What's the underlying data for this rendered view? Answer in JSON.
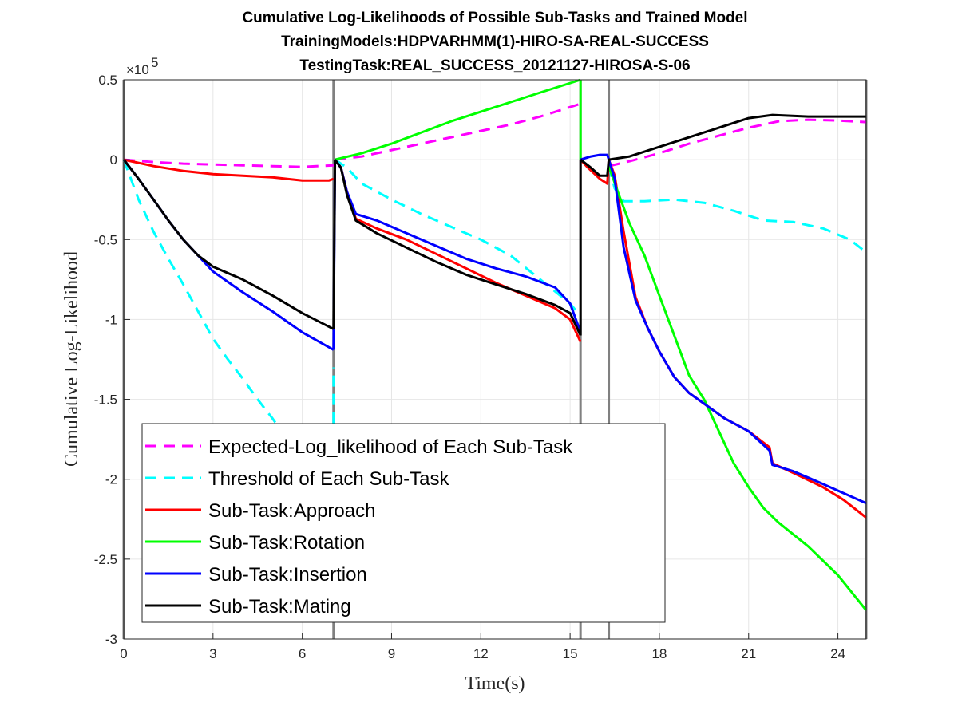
{
  "chart_data": {
    "type": "line",
    "title_lines": [
      "Cumulative Log-Likelihoods of Possible Sub-Tasks and Trained Model",
      "TrainingModels:HDPVARHMM(1)-HIRO-SA-REAL-SUCCESS",
      "TestingTask:REAL_SUCCESS_20121127-HIROSA-S-06"
    ],
    "xlabel": "Time(s)",
    "ylabel": "Cumulative Log-Likelihood",
    "y_exponent_label": "×10",
    "y_exponent_power": "5",
    "xlim": [
      0,
      24.95
    ],
    "ylim": [
      -3,
      0.5
    ],
    "y_units": "x10^5",
    "grid": true,
    "legend_position": "lower-left",
    "x_ticks": [
      0,
      3,
      6,
      9,
      12,
      15,
      18,
      21,
      24
    ],
    "x_tick_labels": [
      "0",
      "3",
      "6",
      "9",
      "12",
      "15",
      "18",
      "21",
      "24"
    ],
    "y_ticks": [
      0.5,
      0,
      -0.5,
      -1,
      -1.5,
      -2,
      -2.5,
      -3
    ],
    "y_tick_labels": [
      "0.5",
      "0",
      "-0.5",
      "-1",
      "-1.5",
      "-2",
      "-2.5",
      "-3"
    ],
    "vertical_markers": [
      0,
      7.05,
      15.35,
      16.3,
      24.95
    ],
    "vertical_marker_color": "#808080",
    "series": [
      {
        "name": "Expected-Log_likelihood of Each Sub-Task",
        "color": "#ff00ff",
        "dashed": true,
        "segments": [
          [
            [
              0,
              0
            ],
            [
              1,
              -0.015
            ],
            [
              2,
              -0.025
            ],
            [
              3,
              -0.03
            ],
            [
              4,
              -0.035
            ],
            [
              5,
              -0.04
            ],
            [
              6,
              -0.045
            ],
            [
              7.05,
              -0.035
            ]
          ],
          [
            [
              7.1,
              0
            ],
            [
              8,
              0.02
            ],
            [
              9,
              0.06
            ],
            [
              10,
              0.1
            ],
            [
              11,
              0.14
            ],
            [
              12,
              0.18
            ],
            [
              13,
              0.22
            ],
            [
              14,
              0.27
            ],
            [
              15.35,
              0.35
            ]
          ],
          [
            [
              16.3,
              -0.04
            ],
            [
              17,
              -0.01
            ],
            [
              18,
              0.04
            ],
            [
              19,
              0.1
            ],
            [
              20,
              0.15
            ],
            [
              21,
              0.2
            ],
            [
              22,
              0.24
            ],
            [
              23,
              0.25
            ],
            [
              24,
              0.245
            ],
            [
              24.95,
              0.235
            ]
          ]
        ]
      },
      {
        "name": "Threshold of Each Sub-Task",
        "color": "#00ffff",
        "dashed": true,
        "segments": [
          [
            [
              0,
              0
            ],
            [
              0.5,
              -0.25
            ],
            [
              1,
              -0.45
            ],
            [
              1.5,
              -0.62
            ],
            [
              2,
              -0.78
            ],
            [
              2.5,
              -0.95
            ],
            [
              3,
              -1.12
            ],
            [
              3.5,
              -1.25
            ],
            [
              4,
              -1.37
            ],
            [
              4.5,
              -1.5
            ],
            [
              5,
              -1.62
            ],
            [
              5.3,
              -1.7
            ]
          ],
          [
            [
              7.05,
              -1.65
            ],
            [
              7.05,
              -1.3
            ]
          ],
          [
            [
              7.1,
              0
            ],
            [
              7.5,
              -0.05
            ],
            [
              8,
              -0.15
            ],
            [
              9,
              -0.25
            ],
            [
              10,
              -0.34
            ],
            [
              11,
              -0.42
            ],
            [
              12,
              -0.5
            ],
            [
              13,
              -0.6
            ],
            [
              14,
              -0.75
            ],
            [
              15,
              -0.9
            ],
            [
              15.35,
              -0.98
            ]
          ],
          [
            [
              16.3,
              -0.04
            ],
            [
              16.5,
              -0.18
            ],
            [
              16.8,
              -0.26
            ],
            [
              17.5,
              -0.26
            ],
            [
              18.5,
              -0.25
            ],
            [
              19.5,
              -0.27
            ],
            [
              20.5,
              -0.32
            ],
            [
              21.5,
              -0.38
            ],
            [
              22.5,
              -0.39
            ],
            [
              23.5,
              -0.43
            ],
            [
              24.4,
              -0.5
            ],
            [
              24.95,
              -0.58
            ]
          ]
        ]
      },
      {
        "name": "Sub-Task:Approach",
        "color": "#ff0000",
        "dashed": false,
        "segments": [
          [
            [
              0,
              0
            ],
            [
              1,
              -0.04
            ],
            [
              2,
              -0.07
            ],
            [
              3,
              -0.09
            ],
            [
              4,
              -0.1
            ],
            [
              5,
              -0.11
            ],
            [
              6,
              -0.13
            ],
            [
              6.9,
              -0.13
            ],
            [
              7.05,
              -0.12
            ]
          ],
          [
            [
              7.1,
              0
            ],
            [
              7.3,
              -0.05
            ],
            [
              7.5,
              -0.2
            ],
            [
              7.8,
              -0.37
            ],
            [
              8.5,
              -0.43
            ],
            [
              9.5,
              -0.5
            ],
            [
              10.5,
              -0.59
            ],
            [
              11.5,
              -0.68
            ],
            [
              12.5,
              -0.77
            ],
            [
              13.5,
              -0.85
            ],
            [
              14.5,
              -0.93
            ],
            [
              15,
              -1.0
            ],
            [
              15.35,
              -1.14
            ]
          ],
          [
            [
              15.35,
              0
            ],
            [
              15.6,
              -0.05
            ],
            [
              16,
              -0.12
            ],
            [
              16.25,
              -0.15
            ],
            [
              16.3,
              0
            ],
            [
              16.5,
              -0.1
            ],
            [
              16.8,
              -0.45
            ],
            [
              17.2,
              -0.86
            ],
            [
              17.6,
              -1.05
            ],
            [
              18,
              -1.2
            ],
            [
              18.5,
              -1.36
            ],
            [
              19,
              -1.46
            ],
            [
              19.6,
              -1.54
            ],
            [
              20.2,
              -1.62
            ],
            [
              21,
              -1.7
            ],
            [
              21.7,
              -1.8
            ],
            [
              21.8,
              -1.9
            ],
            [
              22.5,
              -1.96
            ],
            [
              23.5,
              -2.05
            ],
            [
              24.2,
              -2.13
            ],
            [
              24.95,
              -2.24
            ]
          ]
        ]
      },
      {
        "name": "Sub-Task:Rotation",
        "color": "#00ff00",
        "dashed": false,
        "segments": [
          [
            [
              7.1,
              0
            ],
            [
              8,
              0.04
            ],
            [
              9,
              0.1
            ],
            [
              10,
              0.17
            ],
            [
              11,
              0.24
            ],
            [
              12,
              0.3
            ],
            [
              13,
              0.36
            ],
            [
              14,
              0.42
            ],
            [
              15.35,
              0.5
            ]
          ],
          [
            [
              15.35,
              0.5
            ],
            [
              15.35,
              0
            ]
          ],
          [
            [
              16.3,
              -0.04
            ],
            [
              16.6,
              -0.2
            ],
            [
              17,
              -0.4
            ],
            [
              17.5,
              -0.6
            ],
            [
              18,
              -0.85
            ],
            [
              18.5,
              -1.1
            ],
            [
              19,
              -1.35
            ],
            [
              19.5,
              -1.5
            ],
            [
              20,
              -1.7
            ],
            [
              20.5,
              -1.9
            ],
            [
              21,
              -2.05
            ],
            [
              21.5,
              -2.18
            ],
            [
              22,
              -2.27
            ],
            [
              23,
              -2.42
            ],
            [
              24,
              -2.6
            ],
            [
              24.95,
              -2.82
            ]
          ]
        ]
      },
      {
        "name": "Sub-Task:Insertion",
        "color": "#0000ff",
        "dashed": false,
        "segments": [
          [
            [
              0,
              0
            ],
            [
              0.5,
              -0.12
            ],
            [
              1,
              -0.25
            ],
            [
              1.5,
              -0.38
            ],
            [
              2,
              -0.5
            ],
            [
              2.5,
              -0.6
            ],
            [
              3,
              -0.7
            ],
            [
              4,
              -0.83
            ],
            [
              5,
              -0.95
            ],
            [
              6,
              -1.08
            ],
            [
              7.05,
              -1.19
            ]
          ],
          [
            [
              7.05,
              -1.19
            ],
            [
              7.1,
              0
            ]
          ],
          [
            [
              7.1,
              0
            ],
            [
              7.3,
              -0.05
            ],
            [
              7.5,
              -0.2
            ],
            [
              7.8,
              -0.34
            ],
            [
              8.5,
              -0.38
            ],
            [
              9.5,
              -0.46
            ],
            [
              10.5,
              -0.54
            ],
            [
              11.5,
              -0.62
            ],
            [
              12.5,
              -0.68
            ],
            [
              13.5,
              -0.73
            ],
            [
              14.5,
              -0.8
            ],
            [
              15,
              -0.9
            ],
            [
              15.35,
              -1.08
            ]
          ],
          [
            [
              15.35,
              0
            ],
            [
              15.7,
              0.02
            ],
            [
              16,
              0.03
            ],
            [
              16.25,
              0.03
            ],
            [
              16.3,
              0
            ],
            [
              16.5,
              -0.12
            ],
            [
              16.8,
              -0.55
            ],
            [
              17.2,
              -0.88
            ],
            [
              17.6,
              -1.05
            ],
            [
              18,
              -1.2
            ],
            [
              18.5,
              -1.36
            ],
            [
              19,
              -1.46
            ],
            [
              19.6,
              -1.54
            ],
            [
              20.2,
              -1.62
            ],
            [
              21,
              -1.7
            ],
            [
              21.7,
              -1.82
            ],
            [
              21.8,
              -1.91
            ],
            [
              22.5,
              -1.95
            ],
            [
              23.5,
              -2.03
            ],
            [
              24.95,
              -2.15
            ]
          ]
        ]
      },
      {
        "name": "Sub-Task:Mating",
        "color": "#000000",
        "dashed": false,
        "segments": [
          [
            [
              0,
              0
            ],
            [
              0.5,
              -0.12
            ],
            [
              1,
              -0.25
            ],
            [
              1.5,
              -0.38
            ],
            [
              2,
              -0.5
            ],
            [
              2.5,
              -0.6
            ],
            [
              3,
              -0.67
            ],
            [
              4,
              -0.75
            ],
            [
              5,
              -0.85
            ],
            [
              6,
              -0.96
            ],
            [
              7.05,
              -1.06
            ]
          ],
          [
            [
              7.05,
              -1.06
            ],
            [
              7.1,
              0
            ]
          ],
          [
            [
              7.1,
              0
            ],
            [
              7.3,
              -0.05
            ],
            [
              7.5,
              -0.22
            ],
            [
              7.8,
              -0.38
            ],
            [
              8.5,
              -0.46
            ],
            [
              9.5,
              -0.55
            ],
            [
              10.5,
              -0.64
            ],
            [
              11.5,
              -0.72
            ],
            [
              12.5,
              -0.78
            ],
            [
              13.5,
              -0.84
            ],
            [
              14.5,
              -0.91
            ],
            [
              15,
              -0.96
            ],
            [
              15.35,
              -1.1
            ]
          ],
          [
            [
              15.35,
              -1.1
            ],
            [
              15.35,
              0
            ]
          ],
          [
            [
              15.35,
              0
            ],
            [
              15.7,
              -0.05
            ],
            [
              16,
              -0.1
            ],
            [
              16.25,
              -0.1
            ],
            [
              16.3,
              0
            ],
            [
              17,
              0.02
            ],
            [
              18,
              0.08
            ],
            [
              19,
              0.14
            ],
            [
              20,
              0.2
            ],
            [
              21,
              0.26
            ],
            [
              21.8,
              0.28
            ],
            [
              23,
              0.27
            ],
            [
              24,
              0.27
            ],
            [
              24.95,
              0.27
            ]
          ]
        ]
      }
    ]
  }
}
